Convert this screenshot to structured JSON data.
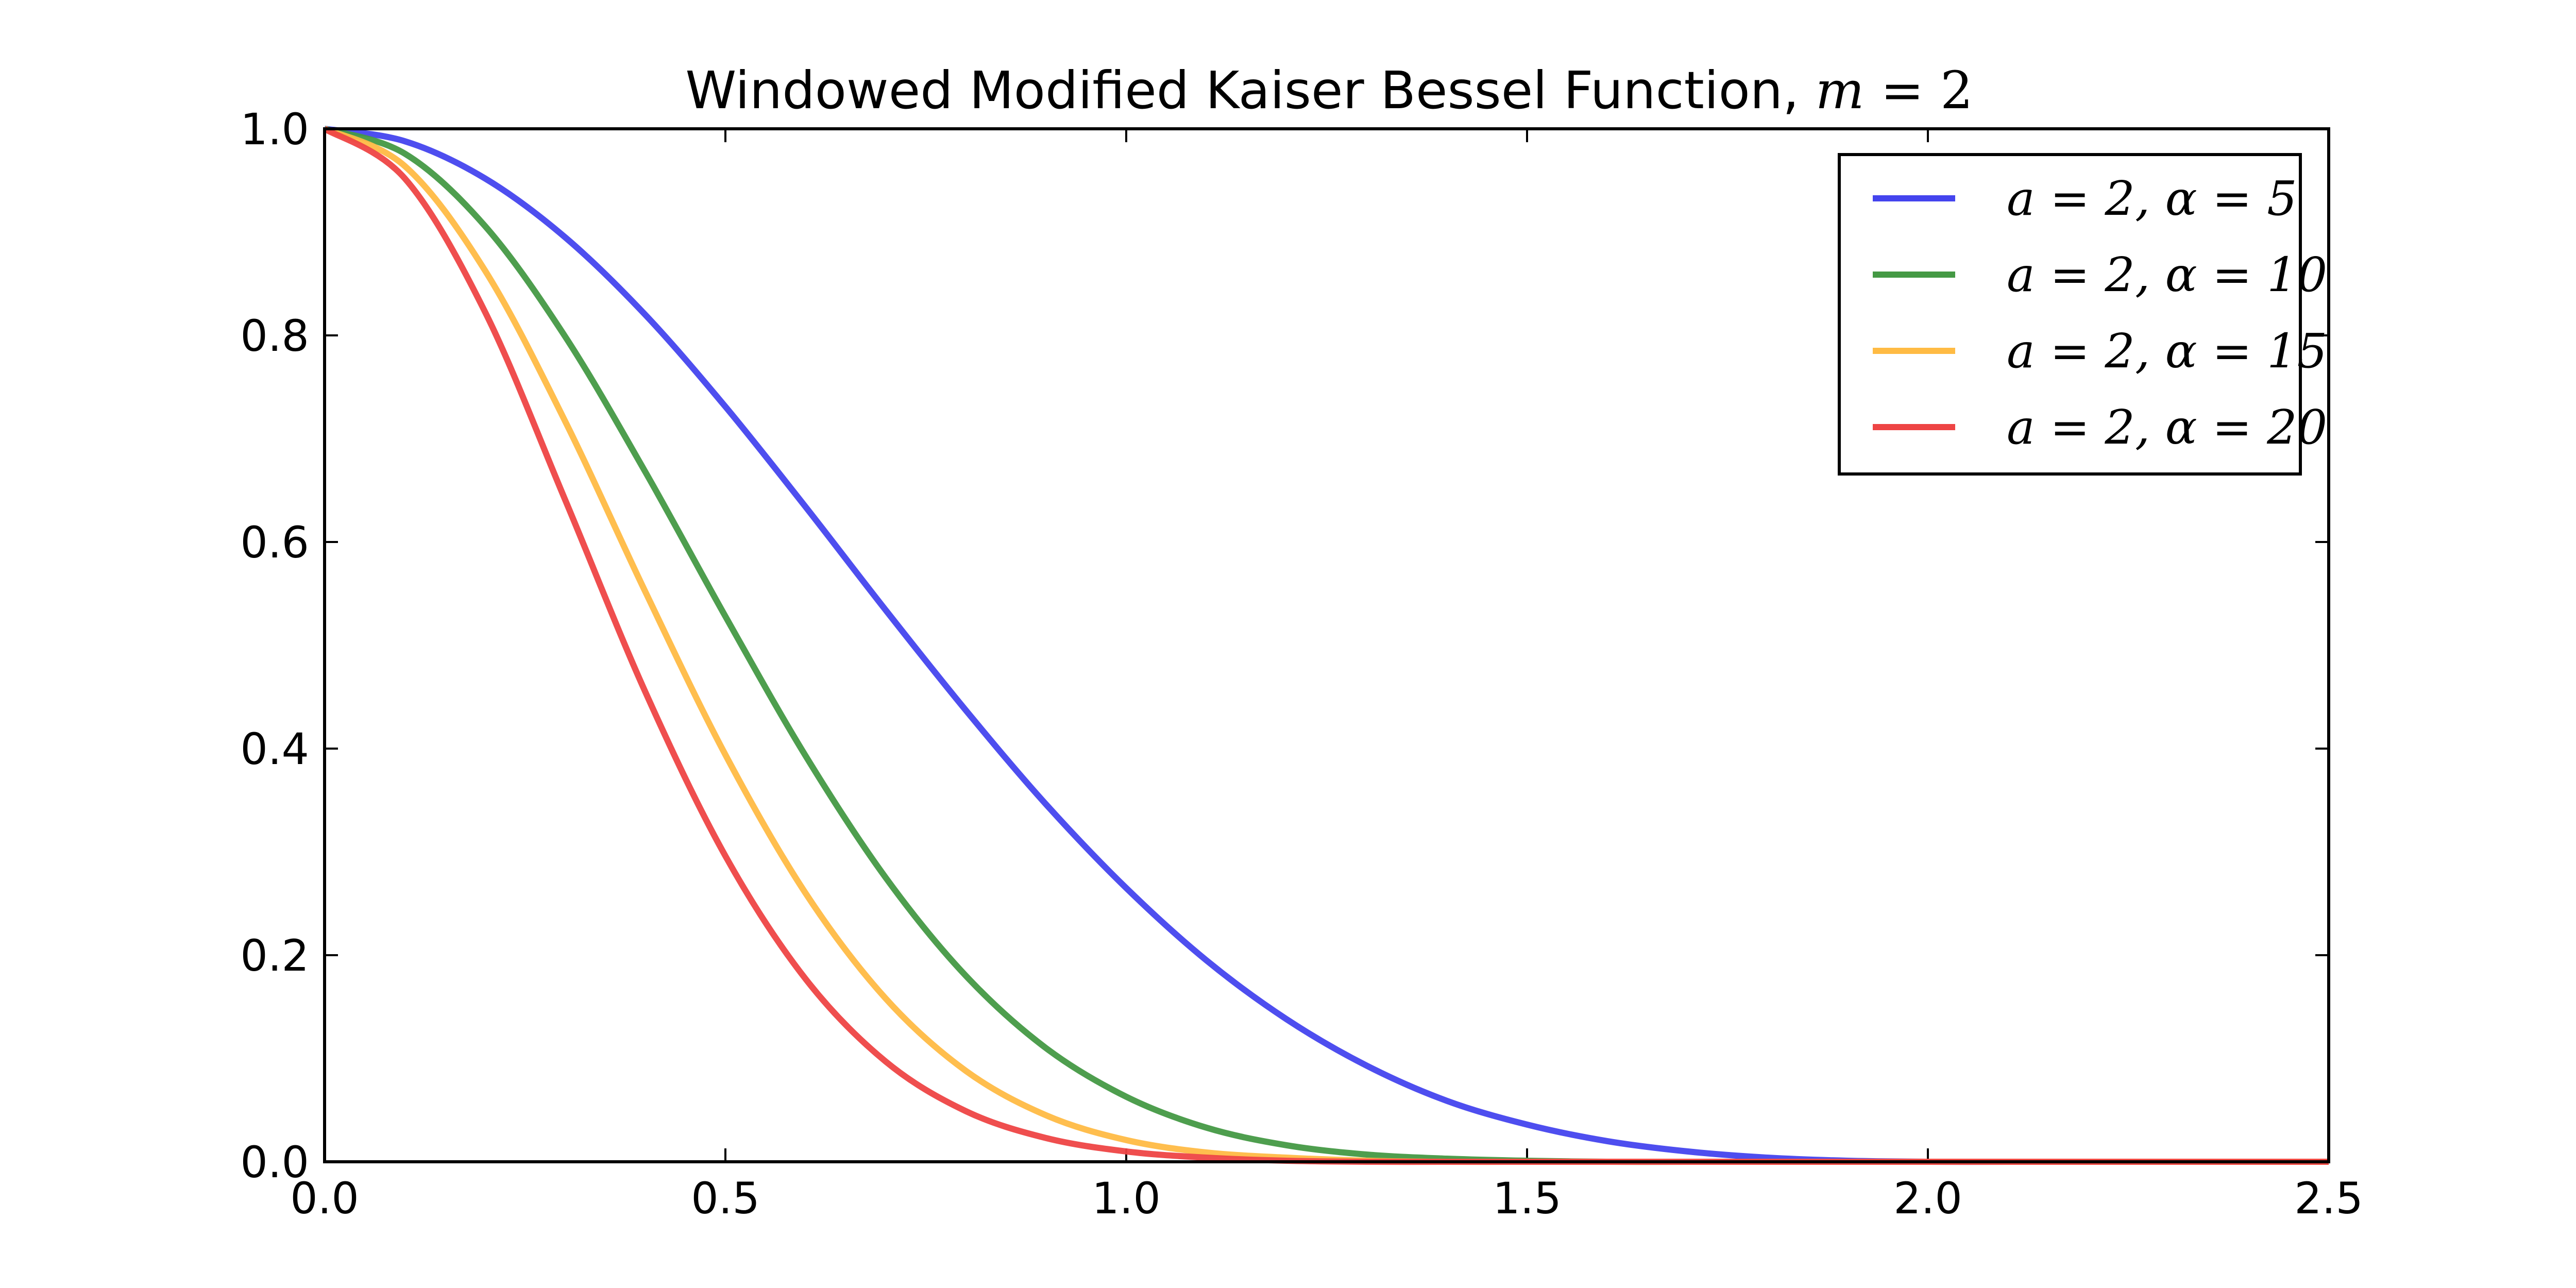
{
  "chart_data": {
    "type": "line",
    "title": "Windowed Modified Kaiser Bessel Function, ",
    "title_math": {
      "var": "m",
      "eq": " = ",
      "val": "2"
    },
    "xlabel": "",
    "ylabel": "",
    "xlim": [
      0.0,
      2.5
    ],
    "ylim": [
      0.0,
      1.0
    ],
    "x_ticks": [
      "0.0",
      "0.5",
      "1.0",
      "1.5",
      "2.0",
      "2.5"
    ],
    "y_ticks": [
      "0.0",
      "0.2",
      "0.4",
      "0.6",
      "0.8",
      "1.0"
    ],
    "grid": false,
    "legend_position": "top-right",
    "window": {
      "a": 2,
      "m": 2
    },
    "series": [
      {
        "name": "a = 2, α = 5",
        "alpha": 5,
        "color": "#4444ee",
        "x": [
          0.0,
          0.1,
          0.2,
          0.3,
          0.4,
          0.5,
          0.6,
          0.7,
          0.8,
          0.9,
          1.0,
          1.1,
          1.2,
          1.3,
          1.4,
          1.5,
          1.6,
          1.7,
          1.8,
          1.9,
          2.0,
          2.1,
          2.2,
          2.3,
          2.4,
          2.5
        ],
        "y": [
          1.0,
          0.988,
          0.952,
          0.895,
          0.82,
          0.731,
          0.634,
          0.534,
          0.437,
          0.346,
          0.265,
          0.195,
          0.138,
          0.093,
          0.059,
          0.036,
          0.02,
          0.01,
          0.004,
          0.001,
          0.0,
          0.0,
          0.0,
          0.0,
          0.0,
          0.0
        ]
      },
      {
        "name": "a = 2, α = 10",
        "alpha": 10,
        "color": "#449944",
        "x": [
          0.0,
          0.1,
          0.2,
          0.3,
          0.4,
          0.5,
          0.6,
          0.7,
          0.8,
          0.9,
          1.0,
          1.1,
          1.2,
          1.3,
          1.4,
          1.5,
          1.6,
          1.7,
          1.8,
          1.9,
          2.0,
          2.1,
          2.2,
          2.3,
          2.4,
          2.5
        ],
        "y": [
          1.0,
          0.976,
          0.906,
          0.799,
          0.668,
          0.528,
          0.393,
          0.275,
          0.18,
          0.11,
          0.063,
          0.033,
          0.016,
          0.007,
          0.003,
          0.001,
          0.0,
          0.0,
          0.0,
          0.0,
          0.0,
          0.0,
          0.0,
          0.0,
          0.0,
          0.0
        ]
      },
      {
        "name": "a = 2, α = 15",
        "alpha": 15,
        "color": "#ffbb44",
        "x": [
          0.0,
          0.1,
          0.2,
          0.3,
          0.4,
          0.5,
          0.6,
          0.7,
          0.8,
          0.9,
          1.0,
          1.1,
          1.2,
          1.3,
          1.4,
          1.5,
          1.6,
          1.7,
          1.8,
          1.9,
          2.0,
          2.1,
          2.2,
          2.3,
          2.4,
          2.5
        ],
        "y": [
          1.0,
          0.964,
          0.863,
          0.717,
          0.552,
          0.394,
          0.26,
          0.158,
          0.088,
          0.045,
          0.021,
          0.009,
          0.004,
          0.001,
          0.0,
          0.0,
          0.0,
          0.0,
          0.0,
          0.0,
          0.0,
          0.0,
          0.0,
          0.0,
          0.0,
          0.0
        ]
      },
      {
        "name": "a = 2, α = 20",
        "alpha": 20,
        "color": "#ee4444",
        "x": [
          0.0,
          0.1,
          0.2,
          0.3,
          0.4,
          0.5,
          0.6,
          0.7,
          0.8,
          0.9,
          1.0,
          1.1,
          1.2,
          1.3,
          1.4,
          1.5,
          1.6,
          1.7,
          1.8,
          1.9,
          2.0,
          2.1,
          2.2,
          2.3,
          2.4,
          2.5
        ],
        "y": [
          1.0,
          0.952,
          0.823,
          0.641,
          0.455,
          0.296,
          0.177,
          0.097,
          0.049,
          0.023,
          0.01,
          0.004,
          0.001,
          0.0,
          0.0,
          0.0,
          0.0,
          0.0,
          0.0,
          0.0,
          0.0,
          0.0,
          0.0,
          0.0,
          0.0,
          0.0
        ]
      }
    ]
  }
}
